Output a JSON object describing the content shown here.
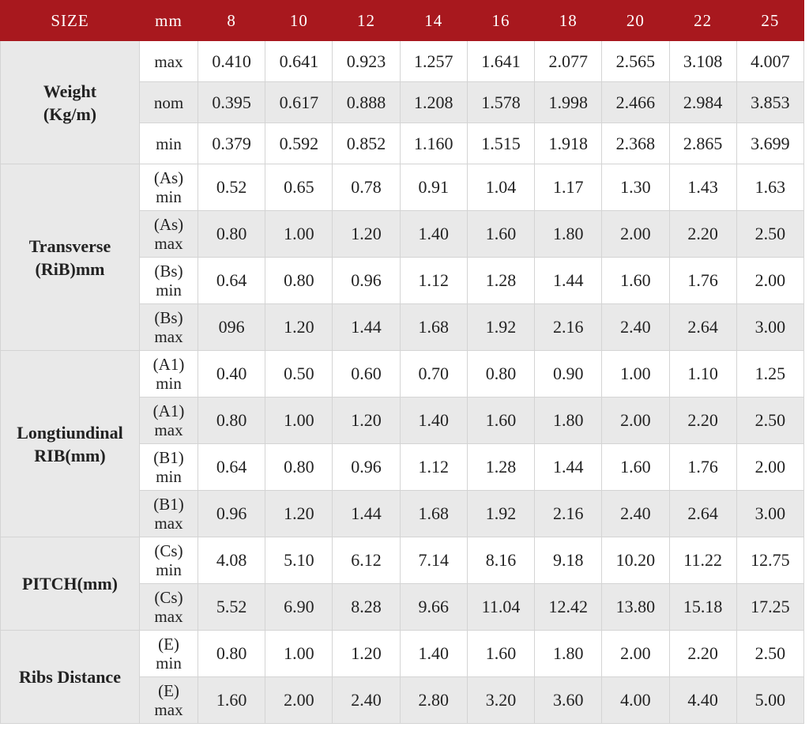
{
  "header": {
    "label_col": "SIZE",
    "unit_col": "mm",
    "sizes": [
      "8",
      "10",
      "12",
      "14",
      "16",
      "18",
      "20",
      "22",
      "25"
    ]
  },
  "groups": [
    {
      "label_line1": "Weight",
      "label_line2": "(Kg/m)",
      "rows": [
        {
          "sub1": "max",
          "sub2": "",
          "values": [
            "0.410",
            "0.641",
            "0.923",
            "1.257",
            "1.641",
            "2.077",
            "2.565",
            "3.108",
            "4.007"
          ]
        },
        {
          "sub1": "nom",
          "sub2": "",
          "values": [
            "0.395",
            "0.617",
            "0.888",
            "1.208",
            "1.578",
            "1.998",
            "2.466",
            "2.984",
            "3.853"
          ]
        },
        {
          "sub1": "min",
          "sub2": "",
          "values": [
            "0.379",
            "0.592",
            "0.852",
            "1.160",
            "1.515",
            "1.918",
            "2.368",
            "2.865",
            "3.699"
          ]
        }
      ]
    },
    {
      "label_line1": "Transverse",
      "label_line2": "(RiB)mm",
      "rows": [
        {
          "sub1": "(As)",
          "sub2": "min",
          "values": [
            "0.52",
            "0.65",
            "0.78",
            "0.91",
            "1.04",
            "1.17",
            "1.30",
            "1.43",
            "1.63"
          ]
        },
        {
          "sub1": "(As)",
          "sub2": "max",
          "values": [
            "0.80",
            "1.00",
            "1.20",
            "1.40",
            "1.60",
            "1.80",
            "2.00",
            "2.20",
            "2.50"
          ]
        },
        {
          "sub1": "(Bs)",
          "sub2": "min",
          "values": [
            "0.64",
            "0.80",
            "0.96",
            "1.12",
            "1.28",
            "1.44",
            "1.60",
            "1.76",
            "2.00"
          ]
        },
        {
          "sub1": "(Bs)",
          "sub2": "max",
          "values": [
            "096",
            "1.20",
            "1.44",
            "1.68",
            "1.92",
            "2.16",
            "2.40",
            "2.64",
            "3.00"
          ]
        }
      ]
    },
    {
      "label_line1": "Longtiundinal",
      "label_line2": "RIB(mm)",
      "rows": [
        {
          "sub1": "(A1)",
          "sub2": "min",
          "values": [
            "0.40",
            "0.50",
            "0.60",
            "0.70",
            "0.80",
            "0.90",
            "1.00",
            "1.10",
            "1.25"
          ]
        },
        {
          "sub1": "(A1)",
          "sub2": "max",
          "values": [
            "0.80",
            "1.00",
            "1.20",
            "1.40",
            "1.60",
            "1.80",
            "2.00",
            "2.20",
            "2.50"
          ]
        },
        {
          "sub1": "(B1)",
          "sub2": "min",
          "values": [
            "0.64",
            "0.80",
            "0.96",
            "1.12",
            "1.28",
            "1.44",
            "1.60",
            "1.76",
            "2.00"
          ]
        },
        {
          "sub1": "(B1)",
          "sub2": "max",
          "values": [
            "0.96",
            "1.20",
            "1.44",
            "1.68",
            "1.92",
            "2.16",
            "2.40",
            "2.64",
            "3.00"
          ]
        }
      ]
    },
    {
      "label_line1": "PITCH(mm)",
      "label_line2": "",
      "rows": [
        {
          "sub1": "(Cs)",
          "sub2": "min",
          "values": [
            "4.08",
            "5.10",
            "6.12",
            "7.14",
            "8.16",
            "9.18",
            "10.20",
            "11.22",
            "12.75"
          ]
        },
        {
          "sub1": "(Cs)",
          "sub2": "max",
          "values": [
            "5.52",
            "6.90",
            "8.28",
            "9.66",
            "11.04",
            "12.42",
            "13.80",
            "15.18",
            "17.25"
          ]
        }
      ]
    },
    {
      "label_line1": "Ribs Distance",
      "label_line2": "",
      "rows": [
        {
          "sub1": "(E)",
          "sub2": "min",
          "values": [
            "0.80",
            "1.00",
            "1.20",
            "1.40",
            "1.60",
            "1.80",
            "2.00",
            "2.20",
            "2.50"
          ]
        },
        {
          "sub1": "(E)",
          "sub2": "max",
          "values": [
            "1.60",
            "2.00",
            "2.40",
            "2.80",
            "3.20",
            "3.60",
            "4.00",
            "4.40",
            "5.00"
          ]
        }
      ]
    }
  ]
}
